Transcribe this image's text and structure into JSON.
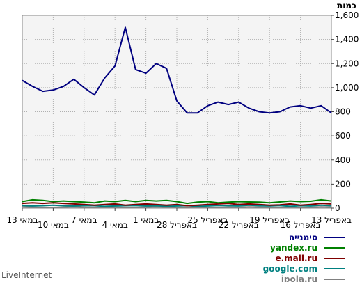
{
  "chart_data": {
    "type": "line",
    "ylabel": "כמות",
    "ylim": [
      0,
      1600
    ],
    "y_ticks": [
      "0",
      "200",
      "400",
      "600",
      "800",
      "1,000",
      "1,200",
      "1,400",
      "1,600"
    ],
    "grid": true,
    "legend_position": "bottom-right",
    "x_direction": "right-to-left",
    "x_tick_labels": [
      {
        "label": "13 במאי",
        "idx": 29
      },
      {
        "label": "10 במאי",
        "idx": 26
      },
      {
        "label": "7 במאי",
        "idx": 23
      },
      {
        "label": "4 במאי",
        "idx": 20
      },
      {
        "label": "1 במאי",
        "idx": 17
      },
      {
        "label": "28 באפריל",
        "idx": 14
      },
      {
        "label": "25 באפריל",
        "idx": 11
      },
      {
        "label": "22 באפריל",
        "idx": 8
      },
      {
        "label": "19 באפריל",
        "idx": 5
      },
      {
        "label": "16 באפריל",
        "idx": 2
      },
      {
        "label": "13 באפריל",
        "idx": -1
      }
    ],
    "series": [
      {
        "name": "סימנייה",
        "color": "#000080",
        "values": [
          790,
          850,
          830,
          850,
          840,
          800,
          790,
          800,
          830,
          880,
          860,
          880,
          850,
          790,
          790,
          890,
          1160,
          1200,
          1120,
          1150,
          1500,
          1180,
          1080,
          940,
          1000,
          1070,
          1010,
          980,
          970,
          1010,
          1060
        ]
      },
      {
        "name": "yandex.ru",
        "color": "#008000",
        "values": [
          60,
          70,
          58,
          55,
          60,
          52,
          45,
          50,
          52,
          55,
          50,
          45,
          55,
          50,
          40,
          55,
          65,
          60,
          65,
          55,
          65,
          55,
          60,
          45,
          50,
          55,
          60,
          55,
          65,
          70,
          55
        ]
      },
      {
        "name": "e.mail.ru",
        "color": "#800000",
        "values": [
          35,
          40,
          30,
          25,
          35,
          28,
          25,
          30,
          35,
          30,
          40,
          35,
          30,
          25,
          20,
          30,
          25,
          30,
          35,
          30,
          25,
          35,
          30,
          25,
          30,
          35,
          40,
          45,
          40,
          45,
          40
        ]
      },
      {
        "name": "google.com",
        "color": "#008080",
        "values": [
          20,
          25,
          18,
          20,
          15,
          22,
          18,
          20,
          25,
          18,
          20,
          22,
          18,
          15,
          20,
          18,
          15,
          20,
          18,
          22,
          20,
          18,
          15,
          20,
          22,
          18,
          20,
          25,
          20,
          18,
          22
        ]
      },
      {
        "name": "ipola.ru",
        "color": "#808080",
        "values": [
          8,
          10,
          6,
          5,
          8,
          6,
          5,
          8,
          10,
          6,
          8,
          5,
          6,
          8,
          5,
          6,
          8,
          10,
          8,
          6,
          5,
          8,
          6,
          5,
          8,
          10,
          8,
          6,
          5,
          8,
          10
        ]
      }
    ]
  },
  "footer": {
    "brand": "LiveInternet"
  }
}
